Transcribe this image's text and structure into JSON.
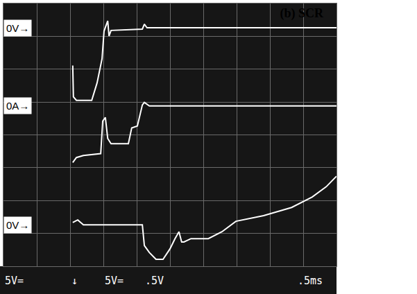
{
  "chart_data": {
    "type": "line",
    "title": "(b) SCR",
    "xlim": [
      0,
      10
    ],
    "ylim": [
      0,
      8
    ],
    "xticks": [
      0,
      1,
      2,
      3,
      4,
      5,
      6,
      7,
      8,
      9,
      10
    ],
    "yticks": [
      0,
      1,
      2,
      3,
      4,
      5,
      6,
      7,
      8
    ],
    "grid": true,
    "tick_labels": false,
    "series": [
      {
        "color": "#ffffff",
        "line_style": "solid",
        "x": [
          2.08,
          2.1,
          2.19,
          2.65,
          2.81,
          2.96,
          3.02,
          3.13,
          3.17,
          3.23,
          4.17,
          4.23,
          4.31,
          10.0
        ],
        "values": [
          6.11,
          5.16,
          5.05,
          5.05,
          5.58,
          6.32,
          7.16,
          7.47,
          7.01,
          7.18,
          7.22,
          7.37,
          7.26,
          7.26
        ]
      },
      {
        "color": "#ffffff",
        "line_style": "solid",
        "x": [
          2.08,
          2.19,
          2.4,
          2.92,
          2.98,
          3.06,
          3.13,
          3.23,
          3.75,
          3.85,
          4.02,
          4.17,
          4.23,
          4.38,
          10.0
        ],
        "values": [
          3.16,
          3.31,
          3.37,
          3.43,
          4.42,
          4.53,
          3.89,
          3.73,
          3.73,
          4.21,
          4.27,
          4.91,
          4.99,
          4.88,
          4.88
        ]
      },
      {
        "color": "#ffffff",
        "line_style": "solid",
        "x": [
          2.08,
          2.23,
          2.4,
          4.17,
          4.23,
          4.38,
          4.58,
          4.79,
          5.0,
          5.15,
          5.27,
          5.35,
          5.42,
          5.63,
          6.15,
          6.56,
          6.98,
          7.81,
          8.65,
          9.27,
          9.69,
          10.0
        ],
        "values": [
          1.33,
          1.41,
          1.26,
          1.26,
          0.63,
          0.42,
          0.21,
          0.21,
          0.53,
          0.84,
          1.05,
          0.74,
          0.74,
          0.84,
          0.84,
          1.05,
          1.37,
          1.54,
          1.79,
          2.11,
          2.42,
          2.74
        ]
      }
    ],
    "annotations": [
      {
        "text": "0V→",
        "y": 7.26
      },
      {
        "text": "0A→",
        "y": 4.88
      },
      {
        "text": "0V→",
        "y": 1.26
      }
    ],
    "readout": [
      "5V=",
      "↓",
      "5V=",
      ".5V",
      ".5ms"
    ]
  }
}
